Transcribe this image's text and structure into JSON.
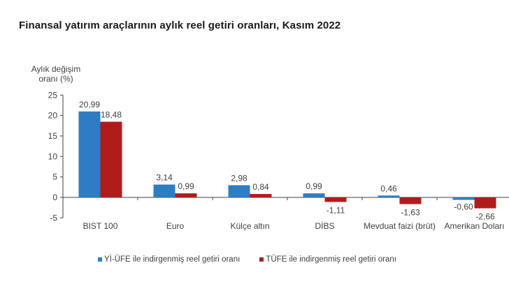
{
  "chart_data": {
    "type": "bar",
    "title": "Finansal yatırım araçlarının aylık reel getiri oranları, Kasım 2022",
    "xlabel": "",
    "ylabel": "Aylık değişim oranı (%)",
    "ylim": [
      -5,
      25
    ],
    "yticks": [
      25,
      20,
      15,
      10,
      5,
      0,
      -5
    ],
    "grid": false,
    "legend_position": "bottom",
    "categories": [
      "BIST 100",
      "Euro",
      "Külçe altın",
      "DİBS",
      "Mevduat faizi (brüt)",
      "Amerikan Doları"
    ],
    "series": [
      {
        "name": "Yİ-ÜFE ile indirgenmiş reel getiri oranı",
        "color": "#2e7cc4",
        "values": [
          20.99,
          3.14,
          2.98,
          0.99,
          0.46,
          -0.6
        ],
        "labels": [
          "20,99",
          "3,14",
          "2,98",
          "0,99",
          "0,46",
          "-0,60"
        ]
      },
      {
        "name": "TÜFE ile indirgenmiş reel getiri oranı",
        "color": "#b01c1c",
        "values": [
          18.48,
          0.99,
          0.84,
          -1.11,
          -1.63,
          -2.66
        ],
        "labels": [
          "18,48",
          "0,99",
          "0,84",
          "-1,11",
          "-1,63",
          "-2,66"
        ]
      }
    ]
  },
  "header": {
    "title": "Finansal yatırım araçlarının aylık reel getiri oranları, Kasım 2022",
    "ylabel_line1": "Aylık değişim",
    "ylabel_line2": "oranı (%)"
  },
  "legend": {
    "items": [
      {
        "label": "Yİ-ÜFE ile indirgenmiş reel getiri oranı",
        "color": "#2e7cc4"
      },
      {
        "label": "TÜFE ile indirgenmiş reel getiri oranı",
        "color": "#b01c1c"
      }
    ]
  }
}
